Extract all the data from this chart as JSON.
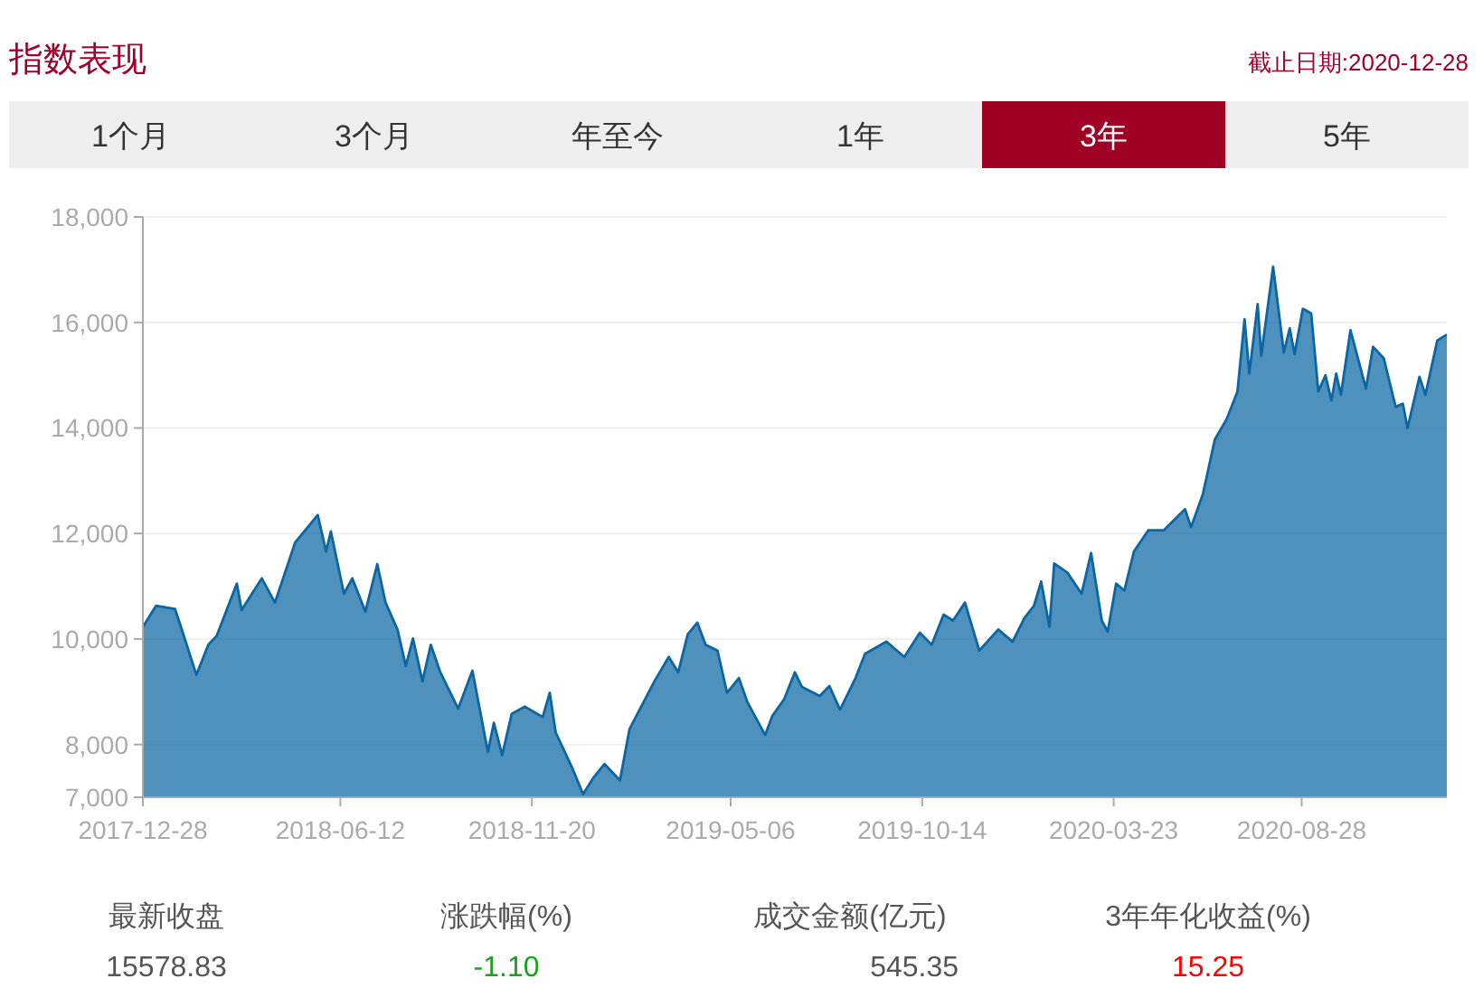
{
  "chart_data": {
    "type": "area",
    "title": "指数表现",
    "subtitle": "截止日期:2020-12-28",
    "annotations": [
      "1个月",
      "3个月",
      "年至今",
      "1年",
      "3年",
      "5年",
      "最新收盘",
      "涨跌幅(%)",
      "成交金额(亿元)",
      "3年年化收益(%)",
      "15578.83",
      "-1.10",
      "545.35",
      "15.25"
    ],
    "x": [
      "2017-12-28",
      "2018-01-08",
      "2018-01-24",
      "2018-01-29",
      "2018-02-11",
      "2018-02-21",
      "2018-02-28",
      "2018-03-17",
      "2018-03-21",
      "2018-04-07",
      "2018-04-18",
      "2018-05-05",
      "2018-05-24",
      "2018-05-31",
      "2018-06-04",
      "2018-06-15",
      "2018-06-22",
      "2018-07-03",
      "2018-07-13",
      "2018-07-20",
      "2018-07-30",
      "2018-08-06",
      "2018-08-12",
      "2018-08-20",
      "2018-08-27",
      "2018-09-04",
      "2018-09-19",
      "2018-10-01",
      "2018-10-14",
      "2018-10-19",
      "2018-10-26",
      "2018-11-03",
      "2018-11-14",
      "2018-11-29",
      "2018-12-05",
      "2018-12-10",
      "2018-12-24",
      "2019-01-02",
      "2019-01-11",
      "2019-01-20",
      "2019-02-02",
      "2019-02-10",
      "2019-03-03",
      "2019-03-15",
      "2019-03-23",
      "2019-03-31",
      "2019-04-08",
      "2019-04-15",
      "2019-04-25",
      "2019-05-03",
      "2019-05-13",
      "2019-05-20",
      "2019-06-04",
      "2019-06-10",
      "2019-06-20",
      "2019-06-29",
      "2019-07-05",
      "2019-07-20",
      "2019-07-28",
      "2019-08-06",
      "2019-08-19",
      "2019-08-27",
      "2019-09-14",
      "2019-09-29",
      "2019-10-12",
      "2019-10-22",
      "2019-11-01",
      "2019-11-09",
      "2019-11-19",
      "2019-12-01",
      "2019-12-17",
      "2019-12-29",
      "2020-01-08",
      "2020-01-16",
      "2020-01-22",
      "2020-01-29",
      "2020-02-02",
      "2020-02-13",
      "2020-02-25",
      "2020-03-04",
      "2020-03-13",
      "2020-03-18",
      "2020-03-25",
      "2020-04-01",
      "2020-04-09",
      "2020-04-21",
      "2020-05-04",
      "2020-05-22",
      "2020-05-27",
      "2020-06-06",
      "2020-06-16",
      "2020-06-26",
      "2020-07-05",
      "2020-07-11",
      "2020-07-15",
      "2020-07-22",
      "2020-07-25",
      "2020-08-04",
      "2020-08-13",
      "2020-08-18",
      "2020-08-22",
      "2020-08-29",
      "2020-09-05",
      "2020-09-11",
      "2020-09-17",
      "2020-09-22",
      "2020-09-26",
      "2020-09-30",
      "2020-10-08",
      "2020-10-21",
      "2020-10-27",
      "2020-11-05",
      "2020-11-15",
      "2020-11-21",
      "2020-11-25",
      "2020-12-05",
      "2020-12-10",
      "2020-12-20",
      "2020-12-28"
    ],
    "series": [
      {
        "color": "#0b66a3",
        "values": [
          10230,
          10630,
          10570,
          10230,
          9320,
          9890,
          10060,
          11050,
          10550,
          11150,
          10690,
          11830,
          12350,
          11660,
          12040,
          10860,
          11150,
          10520,
          11420,
          10690,
          10180,
          9490,
          10010,
          9200,
          9890,
          9370,
          8680,
          9400,
          7860,
          8410,
          7800,
          8580,
          8720,
          8520,
          8980,
          8230,
          7550,
          7060,
          7380,
          7630,
          7320,
          8290,
          9200,
          9660,
          9370,
          10090,
          10310,
          9890,
          9780,
          8980,
          9260,
          8810,
          8180,
          8540,
          8860,
          9370,
          9090,
          8920,
          9110,
          8660,
          9260,
          9720,
          9950,
          9660,
          10120,
          9890,
          10460,
          10350,
          10690,
          9780,
          10180,
          9950,
          10400,
          10630,
          11090,
          10230,
          11430,
          11260,
          10860,
          11630,
          10350,
          10140,
          11050,
          10920,
          11660,
          12060,
          12060,
          12460,
          12120,
          12750,
          13780,
          14170,
          14690,
          16060,
          15030,
          16350,
          15370,
          17060,
          15430,
          15890,
          15400,
          16260,
          16170,
          14690,
          15000,
          14520,
          15030,
          14630,
          15850,
          14750,
          15540,
          15320,
          14400,
          14460,
          14000,
          14970,
          14630,
          15660,
          15770
        ]
      }
    ],
    "xlim": [
      "2017-12-28",
      "2020-12-28"
    ],
    "xticks": [
      "2017-12-28",
      "2018-06-12",
      "2018-11-20",
      "2019-05-06",
      "2019-10-14",
      "2020-03-23",
      "2020-08-28"
    ],
    "ylim": [
      7000,
      18000
    ],
    "yticks": [
      {
        "value": 7000,
        "label": "7,000"
      },
      {
        "value": 8000,
        "label": "8,000"
      },
      {
        "value": 10000,
        "label": "10,000"
      },
      {
        "value": 12000,
        "label": "12,000"
      },
      {
        "value": 14000,
        "label": "14,000"
      },
      {
        "value": 16000,
        "label": "16,000"
      },
      {
        "value": 18000,
        "label": "18,000"
      }
    ],
    "grid": "y"
  }
}
